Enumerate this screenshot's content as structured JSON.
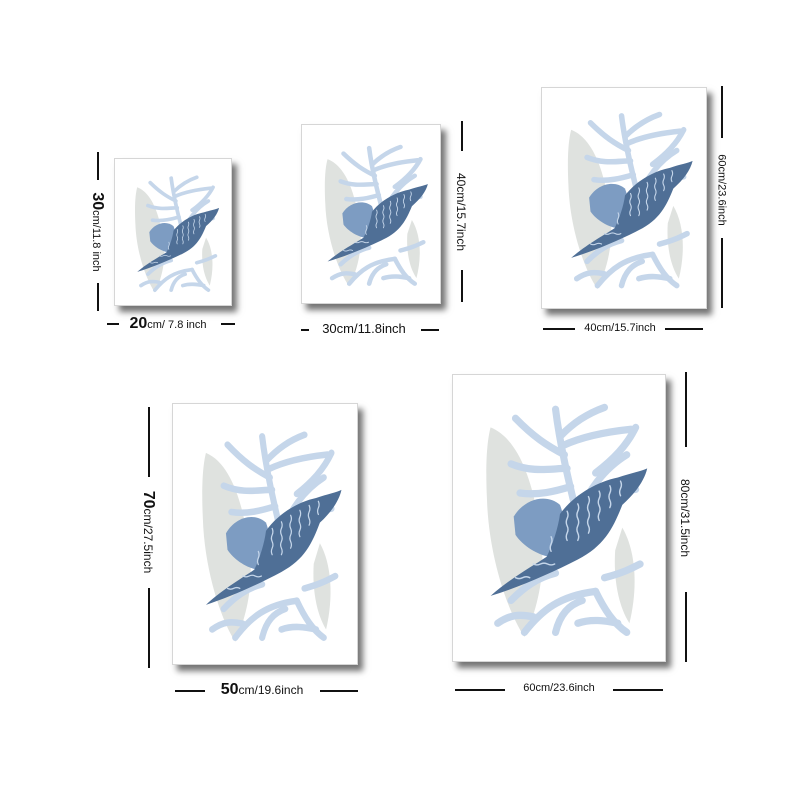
{
  "sizes": [
    {
      "height_number": "30",
      "height_unit": "cm/11.8 inch",
      "width_number": "20",
      "width_unit": "cm/ 7.8 inch"
    },
    {
      "height_label": "40cm/15.7inch",
      "width_label": "30cm/11.8inch"
    },
    {
      "height_label": "60cm/23.6inch",
      "width_label": "40cm/15.7inch"
    },
    {
      "height_number": "70",
      "height_unit": "cm/27.5inch",
      "width_number": "50",
      "width_unit": "cm/19.6inch"
    },
    {
      "height_label": "80cm/31.5inch",
      "width_label": "60cm/23.6inch"
    }
  ],
  "art": {
    "shell_color": "#4f6f96",
    "shell_light_color": "#7d9cc2",
    "coral_color": "#c5d6ea",
    "leaf_color": "#dfe2df",
    "background_color": "#ffffff"
  }
}
